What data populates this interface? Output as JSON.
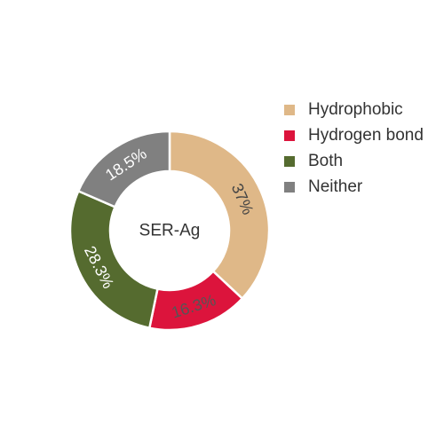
{
  "chart_data": {
    "type": "pie",
    "style": "donut",
    "center_label": "SER-Ag",
    "categories": [
      "Hydrophobic",
      "Hydrogen bond",
      "Both",
      "Neither"
    ],
    "values": [
      37,
      16.3,
      28.3,
      18.5
    ],
    "value_labels": [
      "37%",
      "16.3%",
      "28.3%",
      "18.5%"
    ],
    "colors": [
      "#dfb888",
      "#dc143c",
      "#556b2f",
      "#808080"
    ],
    "label_colors": [
      "#444444",
      "#555555",
      "#ffffff",
      "#ffffff"
    ],
    "legend": {
      "position": "right",
      "entries": [
        "Hydrophobic",
        "Hydrogen bond",
        "Both",
        "Neither"
      ]
    }
  }
}
